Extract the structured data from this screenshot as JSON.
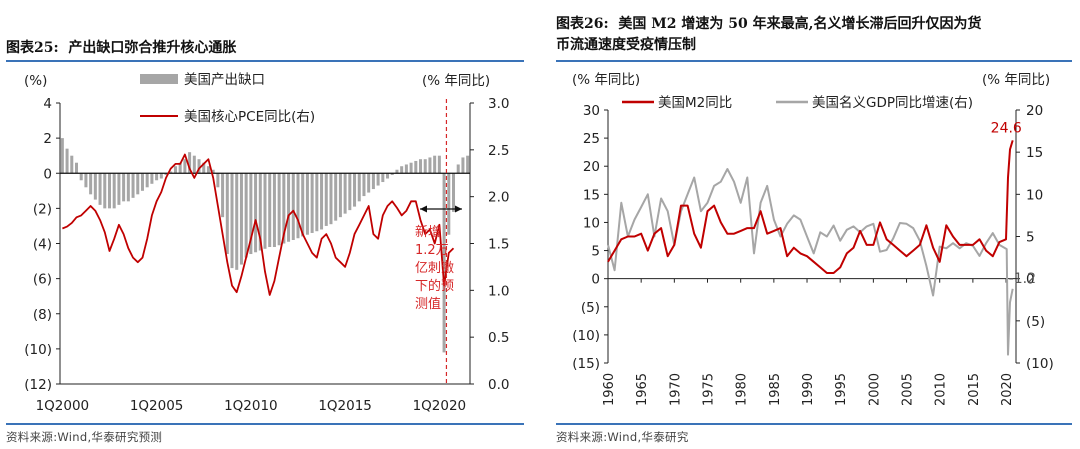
{
  "left": {
    "title_prefix": "图表25:",
    "title_text": "产出缺口弥合推升核心通胀",
    "source": "资料来源:Wind,华泰研究预测",
    "chart_data": {
      "type": "bar+line",
      "left_unit": "(%)",
      "right_unit": "(% 年同比)",
      "ylim_left": [
        -12,
        4
      ],
      "ylim_right": [
        0,
        3
      ],
      "left_ticks": [
        "4",
        "2",
        "0",
        "(2)",
        "(4)",
        "(6)",
        "(8)",
        "(10)",
        "(12)"
      ],
      "right_ticks": [
        "3.0",
        "2.5",
        "2.0",
        "1.5",
        "1.0",
        "0.5",
        "0.0"
      ],
      "x_start": "1Q2000",
      "x_labels": [
        "1Q2000",
        "1Q2005",
        "1Q2010",
        "1Q2015",
        "1Q2020"
      ],
      "legend_bar": "美国产出缺口",
      "legend_line": "美国核心PCE同比(右)",
      "bar_color": "#a6a6a6",
      "line_color": "#c00000",
      "annotation": [
        "新增",
        "1.2万",
        "亿刺激",
        "下的预",
        "测值"
      ],
      "annotation_color": "#d62728",
      "series": [
        {
          "name": "美国产出缺口",
          "unit": "%",
          "values": [
            2.0,
            1.4,
            1.0,
            0.6,
            -0.4,
            -0.8,
            -1.2,
            -1.5,
            -1.8,
            -2.0,
            -2.0,
            -2.0,
            -1.8,
            -1.6,
            -1.6,
            -1.4,
            -1.2,
            -1.0,
            -0.8,
            -0.6,
            -0.4,
            -0.3,
            -0.1,
            0.1,
            0.4,
            0.6,
            0.8,
            1.2,
            1.0,
            0.8,
            0.6,
            0.4,
            0.2,
            -0.8,
            -2.5,
            -4.6,
            -5.4,
            -5.5,
            -5.2,
            -4.8,
            -4.6,
            -4.5,
            -4.4,
            -4.3,
            -4.2,
            -4.2,
            -4.1,
            -4.0,
            -3.9,
            -3.8,
            -3.7,
            -3.6,
            -3.5,
            -3.4,
            -3.3,
            -3.2,
            -3.0,
            -2.9,
            -2.7,
            -2.5,
            -2.3,
            -2.1,
            -1.9,
            -1.6,
            -1.3,
            -1.1,
            -0.9,
            -0.7,
            -0.5,
            -0.3,
            -0.1,
            0.2,
            0.4,
            0.5,
            0.6,
            0.7,
            0.8,
            0.8,
            0.9,
            1.0,
            1.0,
            -10.2,
            -3.5,
            -2.2,
            0.5,
            0.9,
            1.0
          ]
        },
        {
          "name": "美国核心PCE同比(右)",
          "unit": "% 年同比",
          "values": [
            1.66,
            1.68,
            1.72,
            1.78,
            1.8,
            1.85,
            1.9,
            1.85,
            1.75,
            1.62,
            1.42,
            1.55,
            1.7,
            1.6,
            1.45,
            1.35,
            1.3,
            1.35,
            1.55,
            1.8,
            1.95,
            2.05,
            2.2,
            2.3,
            2.35,
            2.35,
            2.45,
            2.3,
            2.2,
            2.3,
            2.35,
            2.4,
            2.2,
            1.9,
            1.6,
            1.3,
            1.05,
            0.98,
            1.15,
            1.35,
            1.55,
            1.75,
            1.55,
            1.2,
            0.95,
            1.1,
            1.35,
            1.6,
            1.8,
            1.85,
            1.75,
            1.6,
            1.5,
            1.4,
            1.35,
            1.55,
            1.6,
            1.5,
            1.35,
            1.3,
            1.25,
            1.4,
            1.6,
            1.7,
            1.8,
            1.9,
            1.6,
            1.55,
            1.8,
            1.9,
            1.95,
            1.88,
            1.8,
            1.85,
            1.95,
            1.95,
            1.75,
            1.6,
            1.65,
            1.5,
            1.7,
            1.05,
            1.4,
            1.45
          ]
        }
      ]
    }
  },
  "right": {
    "title_prefix": "图表26:",
    "title_line1": "美国 M2 增速为 50 年来最高,名义增长滞后回升仅因为货",
    "title_line2": "币流通速度受疫情压制",
    "source": "资料来源:Wind,华泰研究",
    "chart_data": {
      "type": "line",
      "left_unit": "(% 年同比)",
      "right_unit": "(% 年同比)",
      "ylim_left": [
        -15,
        30
      ],
      "ylim_right": [
        -10,
        20
      ],
      "left_ticks": [
        "30",
        "25",
        "20",
        "15",
        "10",
        "5",
        "0",
        "(5)",
        "(10)",
        "(15)"
      ],
      "right_ticks": [
        "20",
        "15",
        "10",
        "5",
        "0",
        "(5)",
        "(10)"
      ],
      "x": [
        "1960",
        "1965",
        "1970",
        "1975",
        "1980",
        "1985",
        "1990",
        "1995",
        "2000",
        "2005",
        "2010",
        "2015",
        "2020"
      ],
      "legend_m2": "美国M2同比",
      "legend_gdp": "美国名义GDP同比增速(右)",
      "m2_color": "#c00000",
      "gdp_color": "#a6a6a6",
      "label_m2_last": "24.6",
      "label_gdp_last": "-1.2",
      "series": [
        {
          "name": "美国M2同比",
          "axis": "left",
          "points": [
            [
              1960,
              3
            ],
            [
              1961,
              5
            ],
            [
              1962,
              7
            ],
            [
              1963,
              7.5
            ],
            [
              1964,
              7.5
            ],
            [
              1965,
              8
            ],
            [
              1966,
              5
            ],
            [
              1967,
              8
            ],
            [
              1968,
              9
            ],
            [
              1969,
              4
            ],
            [
              1970,
              6
            ],
            [
              1971,
              13
            ],
            [
              1972,
              13
            ],
            [
              1973,
              8
            ],
            [
              1974,
              5.5
            ],
            [
              1975,
              12
            ],
            [
              1976,
              13
            ],
            [
              1977,
              10
            ],
            [
              1978,
              8
            ],
            [
              1979,
              8
            ],
            [
              1980,
              8.5
            ],
            [
              1981,
              9
            ],
            [
              1982,
              9
            ],
            [
              1983,
              12
            ],
            [
              1984,
              8
            ],
            [
              1985,
              8.5
            ],
            [
              1986,
              9
            ],
            [
              1987,
              4
            ],
            [
              1988,
              5.5
            ],
            [
              1989,
              4.5
            ],
            [
              1990,
              4
            ],
            [
              1991,
              3
            ],
            [
              1992,
              2
            ],
            [
              1993,
              1
            ],
            [
              1994,
              1
            ],
            [
              1995,
              2
            ],
            [
              1996,
              4.5
            ],
            [
              1997,
              5.5
            ],
            [
              1998,
              8.5
            ],
            [
              1999,
              6
            ],
            [
              2000,
              6
            ],
            [
              2001,
              10
            ],
            [
              2002,
              7
            ],
            [
              2003,
              6
            ],
            [
              2004,
              5
            ],
            [
              2005,
              4
            ],
            [
              2006,
              5
            ],
            [
              2007,
              6
            ],
            [
              2008,
              9.5
            ],
            [
              2009,
              5.5
            ],
            [
              2010,
              3
            ],
            [
              2011,
              9.5
            ],
            [
              2012,
              7.5
            ],
            [
              2013,
              6
            ],
            [
              2014,
              6
            ],
            [
              2015,
              6
            ],
            [
              2016,
              7
            ],
            [
              2017,
              5
            ],
            [
              2018,
              4
            ],
            [
              2019,
              6.5
            ],
            [
              2020,
              7
            ],
            [
              2020.3,
              18
            ],
            [
              2020.6,
              23
            ],
            [
              2021,
              24.6
            ]
          ]
        },
        {
          "name": "美国名义GDP同比增速(右)",
          "axis": "right",
          "points": [
            [
              1960,
              4
            ],
            [
              1961,
              1
            ],
            [
              1962,
              9
            ],
            [
              1963,
              5
            ],
            [
              1964,
              7
            ],
            [
              1965,
              8.5
            ],
            [
              1966,
              10
            ],
            [
              1967,
              5
            ],
            [
              1968,
              9.5
            ],
            [
              1969,
              8
            ],
            [
              1970,
              4
            ],
            [
              1971,
              8
            ],
            [
              1972,
              10
            ],
            [
              1973,
              12
            ],
            [
              1974,
              8
            ],
            [
              1975,
              9
            ],
            [
              1976,
              11
            ],
            [
              1977,
              11.5
            ],
            [
              1978,
              13
            ],
            [
              1979,
              11.5
            ],
            [
              1980,
              9
            ],
            [
              1981,
              12
            ],
            [
              1982,
              3
            ],
            [
              1983,
              9
            ],
            [
              1984,
              11
            ],
            [
              1985,
              7
            ],
            [
              1986,
              5
            ],
            [
              1987,
              6.5
            ],
            [
              1988,
              7.5
            ],
            [
              1989,
              7
            ],
            [
              1990,
              5
            ],
            [
              1991,
              3
            ],
            [
              1992,
              5.5
            ],
            [
              1993,
              5
            ],
            [
              1994,
              6.3
            ],
            [
              1995,
              4.5
            ],
            [
              1996,
              5.8
            ],
            [
              1997,
              6.2
            ],
            [
              1998,
              5.5
            ],
            [
              1999,
              6.2
            ],
            [
              2000,
              6.5
            ],
            [
              2001,
              3.2
            ],
            [
              2002,
              3.4
            ],
            [
              2003,
              4.8
            ],
            [
              2004,
              6.6
            ],
            [
              2005,
              6.5
            ],
            [
              2006,
              6
            ],
            [
              2007,
              4.5
            ],
            [
              2008,
              1.5
            ],
            [
              2009,
              -2
            ],
            [
              2010,
              3.8
            ],
            [
              2011,
              3.6
            ],
            [
              2012,
              4.2
            ],
            [
              2013,
              3.6
            ],
            [
              2014,
              4.2
            ],
            [
              2015,
              3.9
            ],
            [
              2016,
              2.7
            ],
            [
              2017,
              4.2
            ],
            [
              2018,
              5.4
            ],
            [
              2019,
              4
            ],
            [
              2020.1,
              3.5
            ],
            [
              2020.3,
              -9
            ],
            [
              2020.6,
              -2.8
            ],
            [
              2021,
              -1.2
            ]
          ]
        }
      ]
    }
  }
}
